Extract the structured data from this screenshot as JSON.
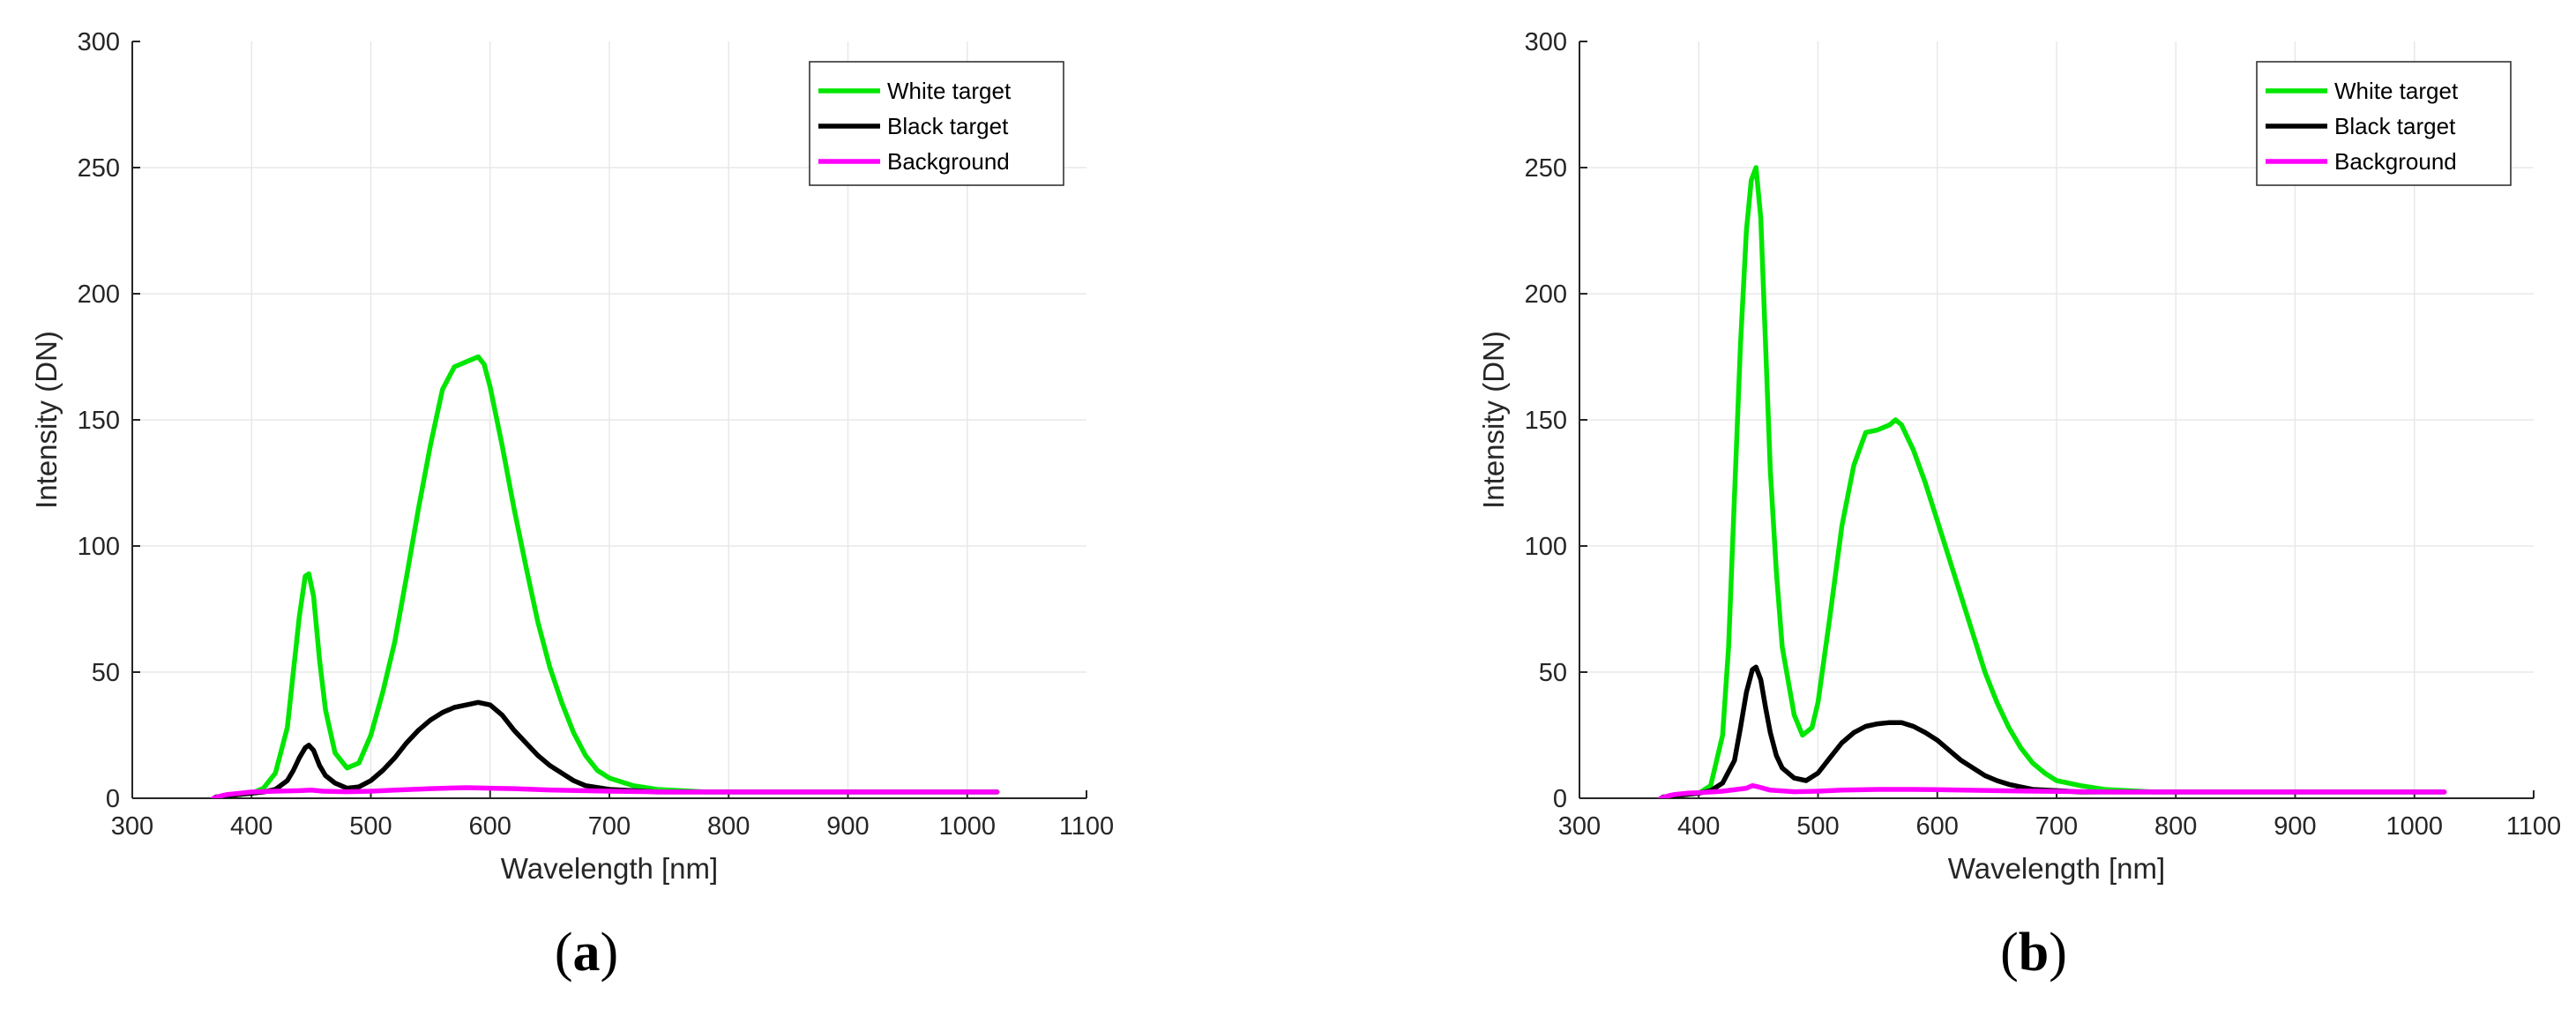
{
  "chart_data": [
    {
      "type": "line",
      "panel_label": "a",
      "xlabel": "Wavelength [nm]",
      "ylabel": "Intensity (DN)",
      "xlim": [
        300,
        1100
      ],
      "ylim": [
        0,
        300
      ],
      "xticks": [
        300,
        400,
        500,
        600,
        700,
        800,
        900,
        1000,
        1100
      ],
      "yticks": [
        0,
        50,
        100,
        150,
        200,
        250,
        300
      ],
      "grid": true,
      "legend_position": "top-right",
      "series": [
        {
          "name": "White target",
          "color": "#00e600",
          "x": [
            370,
            380,
            390,
            400,
            410,
            420,
            430,
            435,
            440,
            445,
            448,
            452,
            457,
            462,
            470,
            480,
            490,
            500,
            510,
            520,
            530,
            540,
            550,
            560,
            570,
            580,
            590,
            595,
            600,
            610,
            620,
            630,
            640,
            650,
            660,
            670,
            680,
            690,
            700,
            720,
            740,
            760,
            780,
            800,
            850,
            900,
            950,
            1000,
            1025
          ],
          "y": [
            0.5,
            1,
            1.5,
            2,
            4,
            10,
            28,
            50,
            72,
            88,
            89,
            80,
            55,
            35,
            18,
            12,
            14,
            25,
            42,
            62,
            88,
            115,
            140,
            162,
            171,
            173,
            175,
            172,
            163,
            140,
            115,
            92,
            70,
            52,
            38,
            26,
            17,
            11,
            8,
            5,
            3.5,
            3,
            2.5,
            2.5,
            2.5,
            2.5,
            2.5,
            2.5,
            2.5
          ]
        },
        {
          "name": "Black target",
          "color": "#000000",
          "x": [
            370,
            380,
            390,
            400,
            410,
            420,
            430,
            435,
            440,
            445,
            448,
            452,
            457,
            462,
            470,
            480,
            490,
            500,
            510,
            520,
            530,
            540,
            550,
            560,
            570,
            580,
            590,
            600,
            610,
            620,
            630,
            640,
            650,
            660,
            670,
            680,
            700,
            720,
            740,
            760,
            800,
            850,
            900,
            950,
            1000,
            1025
          ],
          "y": [
            0.5,
            1,
            1.5,
            2,
            2.5,
            3.5,
            7,
            11,
            16,
            20,
            21,
            19,
            13,
            9,
            6,
            4,
            4.5,
            7,
            11,
            16,
            22,
            27,
            31,
            34,
            36,
            37,
            38,
            37,
            33,
            27,
            22,
            17,
            13,
            10,
            7,
            5,
            3.5,
            3,
            2.5,
            2.5,
            2.5,
            2.5,
            2.5,
            2.5,
            2.5,
            2.5
          ]
        },
        {
          "name": "Background",
          "color": "#ff00ff",
          "x": [
            368,
            375,
            380,
            390,
            400,
            420,
            440,
            450,
            460,
            480,
            500,
            520,
            550,
            580,
            600,
            620,
            650,
            700,
            750,
            800,
            850,
            900,
            950,
            1000,
            1025
          ],
          "y": [
            0,
            1,
            1.5,
            2,
            2.5,
            2.8,
            3,
            3.2,
            2.8,
            2.6,
            2.8,
            3.2,
            3.8,
            4.2,
            4,
            3.8,
            3.3,
            2.8,
            2.5,
            2.5,
            2.5,
            2.5,
            2.5,
            2.5,
            2.5
          ]
        }
      ]
    },
    {
      "type": "line",
      "panel_label": "b",
      "xlabel": "Wavelength [nm]",
      "ylabel": "Intensity (DN)",
      "xlim": [
        300,
        1100
      ],
      "ylim": [
        0,
        300
      ],
      "xticks": [
        300,
        400,
        500,
        600,
        700,
        800,
        900,
        1000,
        1100
      ],
      "yticks": [
        0,
        50,
        100,
        150,
        200,
        250,
        300
      ],
      "grid": true,
      "legend_position": "top-right",
      "series": [
        {
          "name": "White target",
          "color": "#00e600",
          "x": [
            370,
            380,
            390,
            400,
            410,
            420,
            425,
            430,
            435,
            440,
            444,
            448,
            452,
            456,
            460,
            465,
            470,
            480,
            487,
            495,
            500,
            510,
            520,
            530,
            540,
            550,
            560,
            565,
            570,
            580,
            590,
            600,
            610,
            620,
            630,
            640,
            650,
            660,
            670,
            680,
            690,
            700,
            720,
            740,
            760,
            780,
            800,
            850,
            900,
            950,
            1000,
            1025
          ],
          "y": [
            0.5,
            1,
            1.5,
            2,
            5,
            25,
            60,
            120,
            180,
            225,
            245,
            250,
            230,
            180,
            130,
            90,
            60,
            33,
            25,
            28,
            38,
            72,
            108,
            132,
            145,
            146,
            148,
            150,
            148,
            138,
            125,
            110,
            95,
            80,
            65,
            50,
            38,
            28,
            20,
            14,
            10,
            7,
            5,
            3.5,
            3,
            2.5,
            2.5,
            2.5,
            2.5,
            2.5,
            2.5,
            2.5
          ]
        },
        {
          "name": "Black target",
          "color": "#000000",
          "x": [
            370,
            380,
            390,
            400,
            410,
            420,
            430,
            435,
            440,
            445,
            448,
            452,
            456,
            460,
            465,
            470,
            480,
            490,
            500,
            510,
            520,
            530,
            540,
            550,
            560,
            570,
            580,
            590,
            600,
            610,
            620,
            630,
            640,
            650,
            660,
            680,
            700,
            720,
            740,
            760,
            800,
            850,
            900,
            950,
            1000,
            1025
          ],
          "y": [
            0.5,
            1,
            1.5,
            2,
            3,
            6,
            15,
            28,
            42,
            51,
            52,
            47,
            36,
            26,
            17,
            12,
            8,
            7,
            10,
            16,
            22,
            26,
            28.5,
            29.5,
            30,
            30,
            28.5,
            26,
            23,
            19,
            15,
            12,
            9,
            7,
            5.5,
            3.5,
            3,
            2.5,
            2.5,
            2.5,
            2.5,
            2.5,
            2.5,
            2.5,
            2.5,
            2.5
          ]
        },
        {
          "name": "Background",
          "color": "#ff00ff",
          "x": [
            368,
            375,
            380,
            390,
            400,
            420,
            440,
            445,
            450,
            460,
            480,
            500,
            520,
            550,
            580,
            600,
            650,
            700,
            750,
            800,
            850,
            900,
            950,
            1000,
            1025
          ],
          "y": [
            0,
            1,
            1.5,
            2,
            2.2,
            2.8,
            4,
            5,
            4.5,
            3.2,
            2.6,
            2.8,
            3.2,
            3.5,
            3.5,
            3.4,
            3,
            2.7,
            2.5,
            2.5,
            2.5,
            2.5,
            2.5,
            2.5,
            2.5
          ]
        }
      ]
    }
  ]
}
